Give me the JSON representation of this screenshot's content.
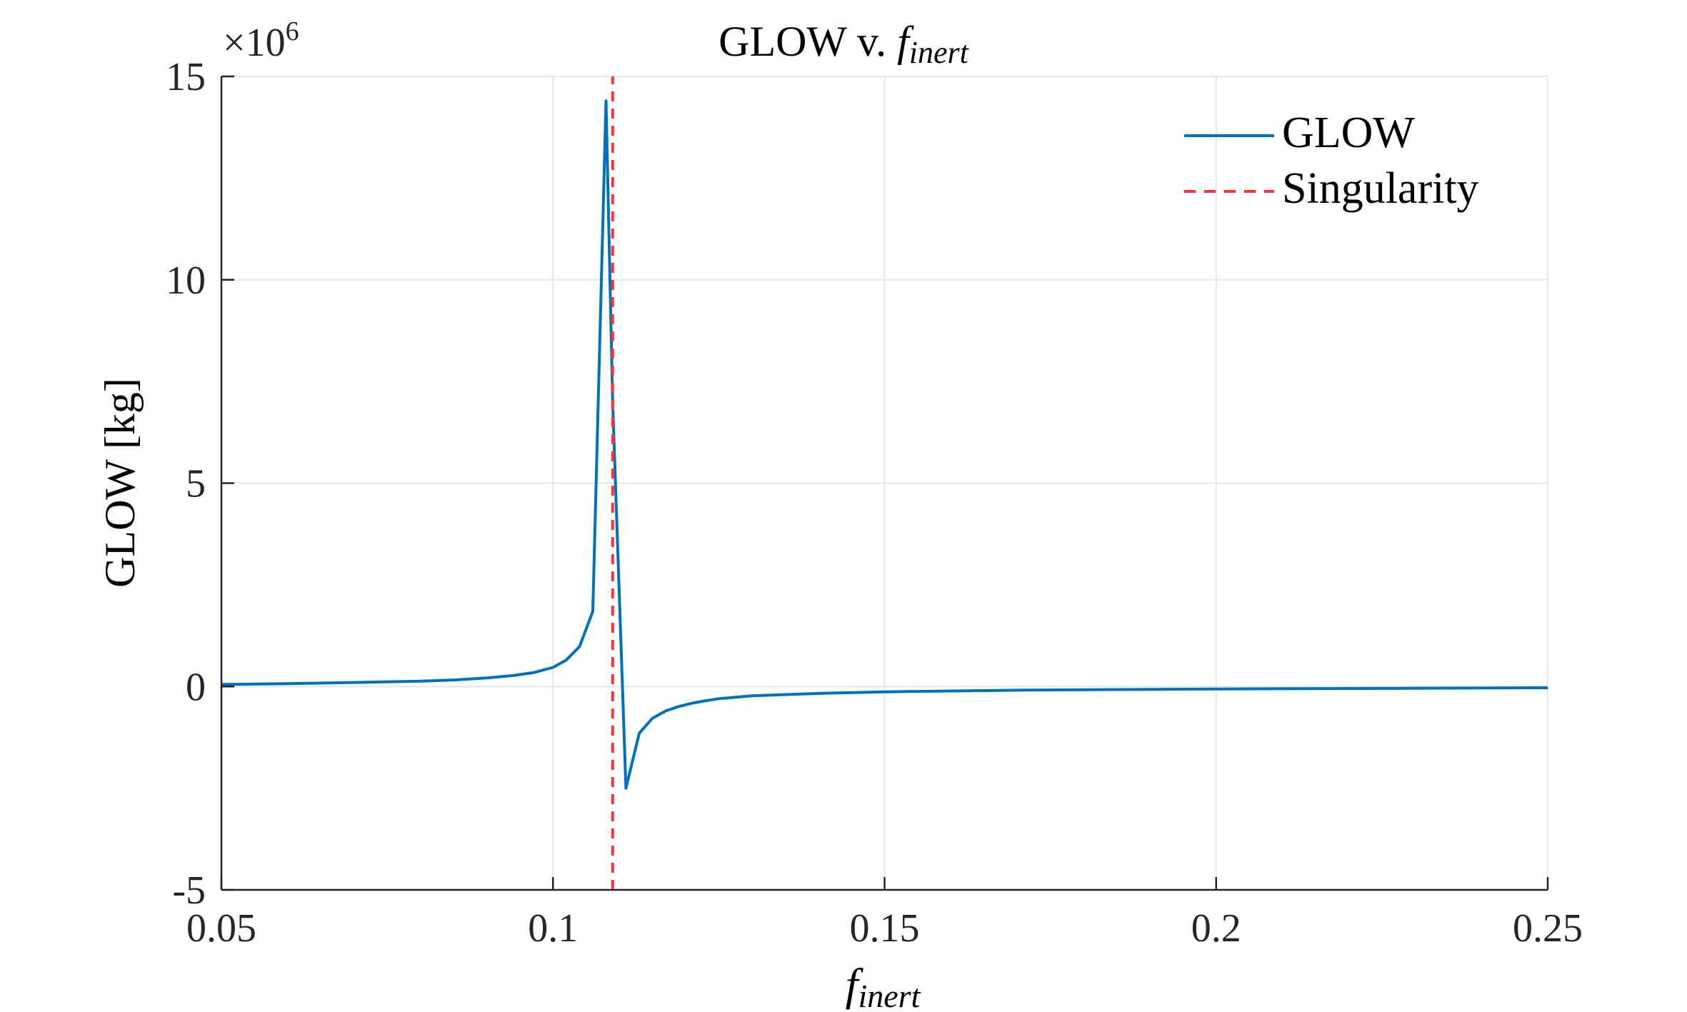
{
  "chart_data": {
    "type": "line",
    "title": "GLOW v. ",
    "title_math": "f",
    "title_math_sub": "inert",
    "xlabel_math": "f",
    "xlabel_math_sub": "inert",
    "ylabel": "GLOW [kg]",
    "exponent_label": "×10",
    "exponent_power": "6",
    "xlim": [
      0.05,
      0.25
    ],
    "ylim": [
      -5,
      15
    ],
    "xticks": [
      0.05,
      0.1,
      0.15,
      0.2,
      0.25
    ],
    "xtick_labels": [
      "0.05",
      "0.1",
      "0.15",
      "0.2",
      "0.25"
    ],
    "yticks": [
      -5,
      0,
      5,
      10,
      15
    ],
    "ytick_labels": [
      "-5",
      "0",
      "5",
      "10",
      "15"
    ],
    "grid": true,
    "legend_position": "top-right",
    "series": [
      {
        "name": "GLOW",
        "style": "solid",
        "color": "#0072bd",
        "x": [
          0.05,
          0.06,
          0.07,
          0.08,
          0.085,
          0.09,
          0.094,
          0.097,
          0.1,
          0.102,
          0.104,
          0.106,
          0.108,
          0.109,
          0.111,
          0.113,
          0.115,
          0.117,
          0.119,
          0.121,
          0.123,
          0.125,
          0.13,
          0.14,
          0.15,
          0.17,
          0.2,
          0.25
        ],
        "y": [
          0.05,
          0.07,
          0.1,
          0.13,
          0.16,
          0.21,
          0.27,
          0.34,
          0.47,
          0.65,
          0.98,
          1.85,
          14.4,
          7.0,
          -2.5,
          -1.15,
          -0.78,
          -0.6,
          -0.49,
          -0.41,
          -0.35,
          -0.3,
          -0.23,
          -0.17,
          -0.13,
          -0.09,
          -0.06,
          -0.03
        ]
      },
      {
        "name": "Singularity",
        "style": "dashed",
        "color": "#ff3333",
        "x": [
          0.109,
          0.109
        ],
        "y": [
          -5,
          15
        ]
      }
    ]
  }
}
